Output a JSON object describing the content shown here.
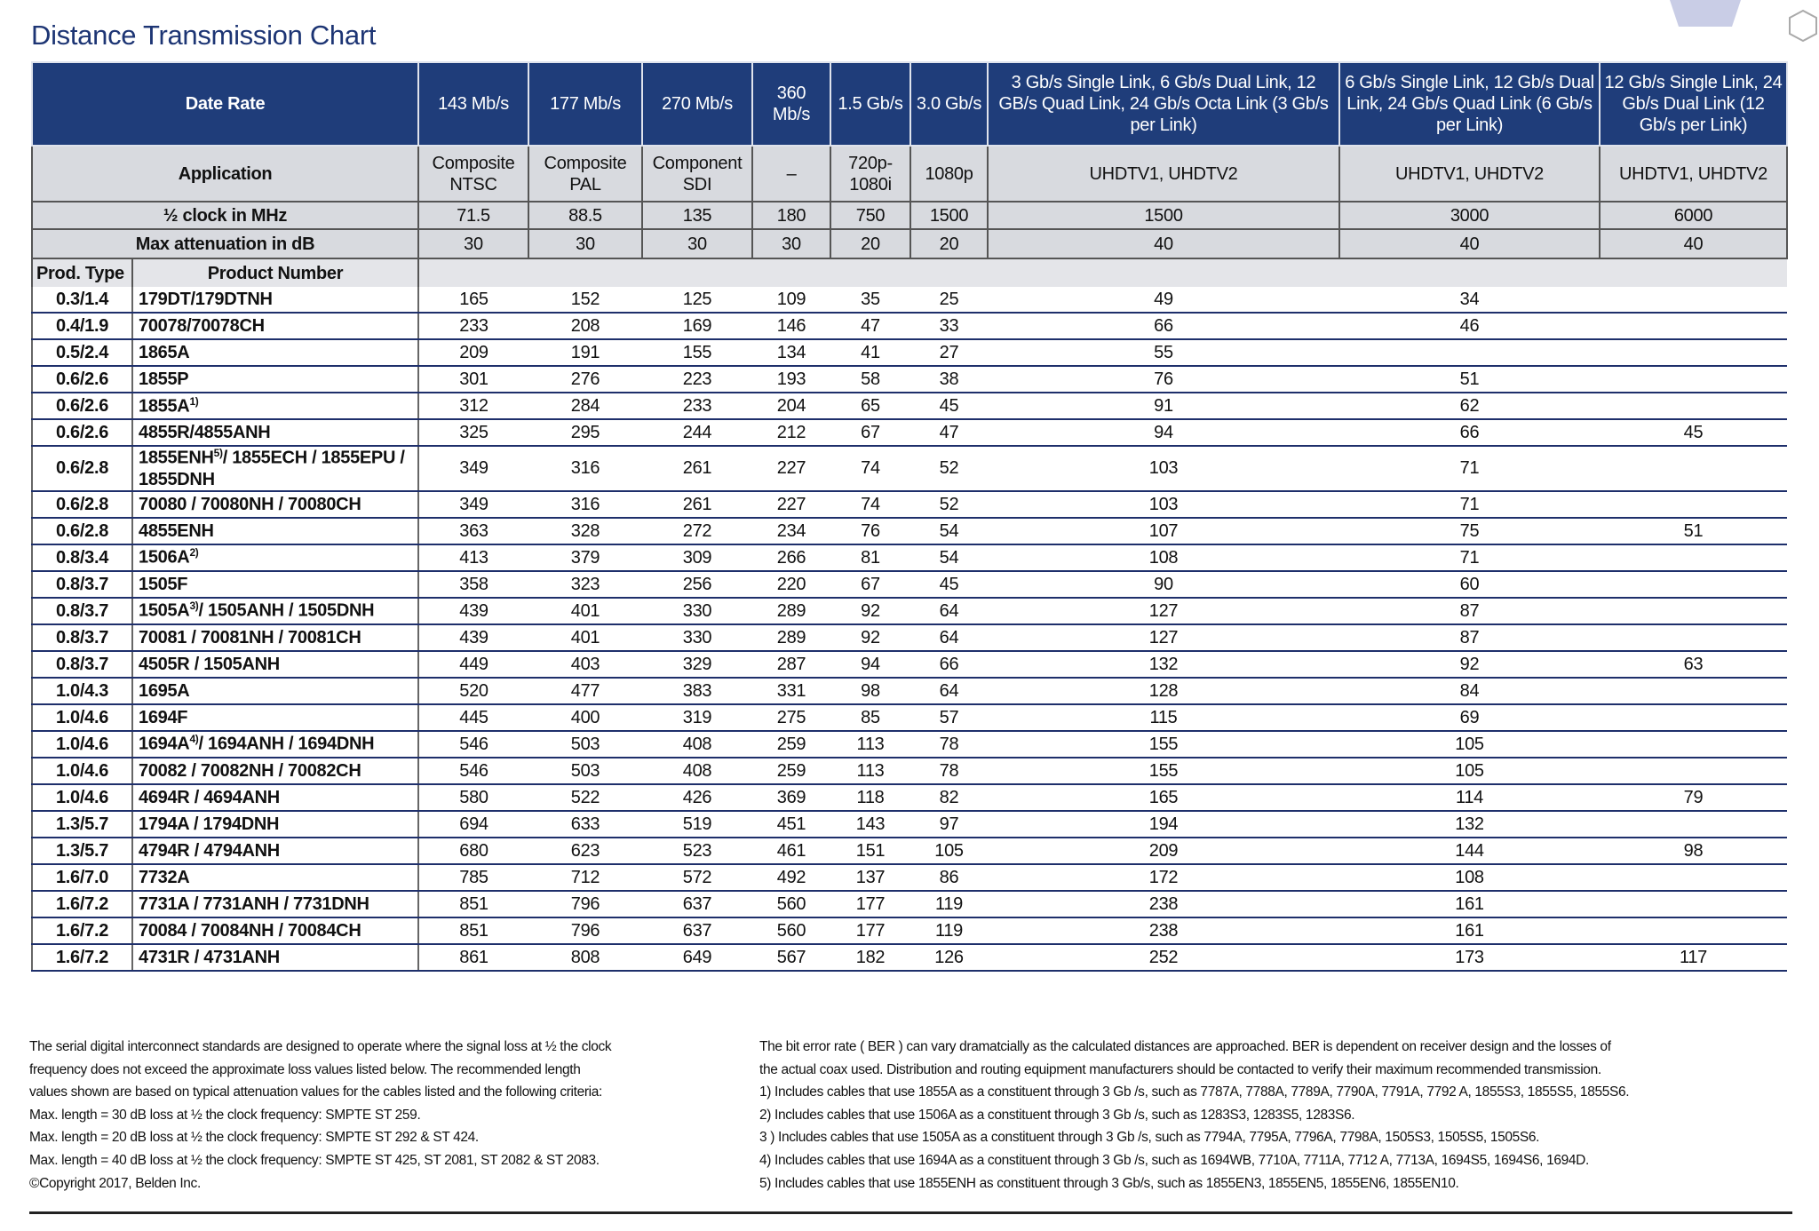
{
  "title": "Distance Transmission Chart",
  "header_rows": [
    {
      "label": "Date Rate",
      "cells": [
        "143 Mb/s",
        "177 Mb/s",
        "270 Mb/s",
        "360 Mb/s",
        "1.5 Gb/s",
        "3.0 Gb/s",
        "3 Gb/s Single Link, 6 Gb/s Dual Link, 12 GB/s Quad Link, 24 Gb/s Octa Link (3 Gb/s per Link)",
        "6 Gb/s Single Link, 12 Gb/s Dual Link, 24 Gb/s Quad Link (6 Gb/s per Link)",
        "12 Gb/s Single Link, 24 Gb/s Dual Link (12 Gb/s per Link)"
      ]
    },
    {
      "label": "Application",
      "cells": [
        "Composite NTSC",
        "Composite PAL",
        "Component SDI",
        "–",
        "720p-1080i",
        "1080p",
        "UHDTV1, UHDTV2",
        "UHDTV1, UHDTV2",
        "UHDTV1, UHDTV2"
      ]
    },
    {
      "label": "½ clock in MHz",
      "cells": [
        71.5,
        88.5,
        135,
        180,
        750,
        1500,
        1500,
        3000,
        6000
      ]
    },
    {
      "label": "Max attenuation in dB",
      "cells": [
        30,
        30,
        30,
        30,
        20,
        20,
        40,
        40,
        40
      ]
    }
  ],
  "column_headers": [
    "Prod. Type",
    "Product Number"
  ],
  "rows": [
    {
      "type": "0.3/1.4",
      "product": "179DT/179DTNH",
      "values": [
        165,
        152,
        125,
        109,
        35,
        25,
        49,
        34,
        null
      ]
    },
    {
      "type": "0.4/1.9",
      "product": "70078/70078CH",
      "values": [
        233,
        208,
        169,
        146,
        47,
        33,
        66,
        46,
        null
      ]
    },
    {
      "type": "0.5/2.4",
      "product": "1865A",
      "values": [
        209,
        191,
        155,
        134,
        41,
        27,
        55,
        null,
        null
      ]
    },
    {
      "type": "0.6/2.6",
      "product": "1855P",
      "values": [
        301,
        276,
        223,
        193,
        58,
        38,
        76,
        51,
        null
      ]
    },
    {
      "type": "0.6/2.6",
      "product": "1855A",
      "note": "1)",
      "values": [
        312,
        284,
        233,
        204,
        65,
        45,
        91,
        62,
        null
      ]
    },
    {
      "type": "0.6/2.6",
      "product": "4855R/4855ANH",
      "values": [
        325,
        295,
        244,
        212,
        67,
        47,
        94,
        66,
        45
      ]
    },
    {
      "type": "0.6/2.8",
      "product": "1855ENH",
      "note": "5)",
      "suffix": "/ 1855ECH / 1855EPU / 1855DNH",
      "values": [
        349,
        316,
        261,
        227,
        74,
        52,
        103,
        71,
        null
      ]
    },
    {
      "type": "0.6/2.8",
      "product": "70080 / 70080NH / 70080CH",
      "values": [
        349,
        316,
        261,
        227,
        74,
        52,
        103,
        71,
        null
      ]
    },
    {
      "type": "0.6/2.8",
      "product": "4855ENH",
      "values": [
        363,
        328,
        272,
        234,
        76,
        54,
        107,
        75,
        51
      ]
    },
    {
      "type": "0.8/3.4",
      "product": "1506A",
      "note": "2)",
      "values": [
        413,
        379,
        309,
        266,
        81,
        54,
        108,
        71,
        null
      ]
    },
    {
      "type": "0.8/3.7",
      "product": "1505F",
      "values": [
        358,
        323,
        256,
        220,
        67,
        45,
        90,
        60,
        null
      ]
    },
    {
      "type": "0.8/3.7",
      "product": "1505A",
      "note": "3)",
      "suffix": "/ 1505ANH / 1505DNH",
      "values": [
        439,
        401,
        330,
        289,
        92,
        64,
        127,
        87,
        null
      ]
    },
    {
      "type": "0.8/3.7",
      "product": "70081 / 70081NH / 70081CH",
      "values": [
        439,
        401,
        330,
        289,
        92,
        64,
        127,
        87,
        null
      ]
    },
    {
      "type": "0.8/3.7",
      "product": "4505R / 1505ANH",
      "values": [
        449,
        403,
        329,
        287,
        94,
        66,
        132,
        92,
        63
      ]
    },
    {
      "type": "1.0/4.3",
      "product": "1695A",
      "values": [
        520,
        477,
        383,
        331,
        98,
        64,
        128,
        84,
        null
      ]
    },
    {
      "type": "1.0/4.6",
      "product": "1694F",
      "values": [
        445,
        400,
        319,
        275,
        85,
        57,
        115,
        69,
        null
      ]
    },
    {
      "type": "1.0/4.6",
      "product": "1694A",
      "note": "4)",
      "suffix": "/ 1694ANH / 1694DNH",
      "values": [
        546,
        503,
        408,
        259,
        113,
        78,
        155,
        105,
        null
      ]
    },
    {
      "type": "1.0/4.6",
      "product": "70082 / 70082NH / 70082CH",
      "values": [
        546,
        503,
        408,
        259,
        113,
        78,
        155,
        105,
        null
      ]
    },
    {
      "type": "1.0/4.6",
      "product": "4694R / 4694ANH",
      "values": [
        580,
        522,
        426,
        369,
        118,
        82,
        165,
        114,
        79
      ]
    },
    {
      "type": "1.3/5.7",
      "product": "1794A / 1794DNH",
      "values": [
        694,
        633,
        519,
        451,
        143,
        97,
        194,
        132,
        null
      ]
    },
    {
      "type": "1.3/5.7",
      "product": "4794R / 4794ANH",
      "values": [
        680,
        623,
        523,
        461,
        151,
        105,
        209,
        144,
        98
      ]
    },
    {
      "type": "1.6/7.0",
      "product": "7732A",
      "values": [
        785,
        712,
        572,
        492,
        137,
        86,
        172,
        108,
        null
      ]
    },
    {
      "type": "1.6/7.2",
      "product": "7731A / 7731ANH / 7731DNH",
      "values": [
        851,
        796,
        637,
        560,
        177,
        119,
        238,
        161,
        null
      ]
    },
    {
      "type": "1.6/7.2",
      "product": "70084 / 70084NH / 70084CH",
      "values": [
        851,
        796,
        637,
        560,
        177,
        119,
        238,
        161,
        null
      ]
    },
    {
      "type": "1.6/7.2",
      "product": "4731R / 4731ANH",
      "values": [
        861,
        808,
        649,
        567,
        182,
        126,
        252,
        173,
        117
      ]
    }
  ],
  "footer": {
    "left": [
      "The serial digital interconnect standards are designed to operate where the signal loss at ½ the clock",
      "frequency does not exceed the approximate loss values listed below. The recommended length",
      "values shown are based on typical attenuation values for the cables listed and the following criteria:",
      "Max. length = 30 dB loss at ½ the clock frequency: SMPTE ST 259.",
      "Max. length = 20 dB loss at ½ the clock frequency: SMPTE ST 292 & ST 424.",
      "Max. length = 40 dB loss at ½ the clock frequency: SMPTE ST 425, ST 2081, ST 2082 & ST 2083.",
      "©Copyright 2017, Belden Inc."
    ],
    "right": [
      "The bit error rate ( BER ) can vary dramatcially as the calculated distances are approached. BER is dependent on receiver design and the losses of",
      "the actual coax used. Distribution and routing equipment manufacturers should be contacted to verify their maximum recommended transmission.",
      "1) Includes cables that use 1855A as a constituent through 3 Gb /s, such as 7787A, 7788A, 7789A, 7790A, 7791A, 7792 A, 1855S3, 1855S5, 1855S6.",
      "2) Includes cables that use 1506A as a constituent through 3 Gb /s, such as 1283S3, 1283S5, 1283S6.",
      "3 ) Includes cables that use 1505A as a constituent through 3 Gb /s, such as 7794A, 7795A, 7796A, 7798A, 1505S3, 1505S5, 1505S6.",
      "4) Includes cables that use 1694A as a constituent through 3 Gb /s, such as 1694WB, 7710A, 7711A, 7712 A, 7713A, 1694S5, 1694S6, 1694D.",
      "5) Includes cables that use 1855ENH as constituent through 3 Gb/s, such as 1855EN3, 1855EN5, 1855EN6, 1855EN10."
    ]
  }
}
